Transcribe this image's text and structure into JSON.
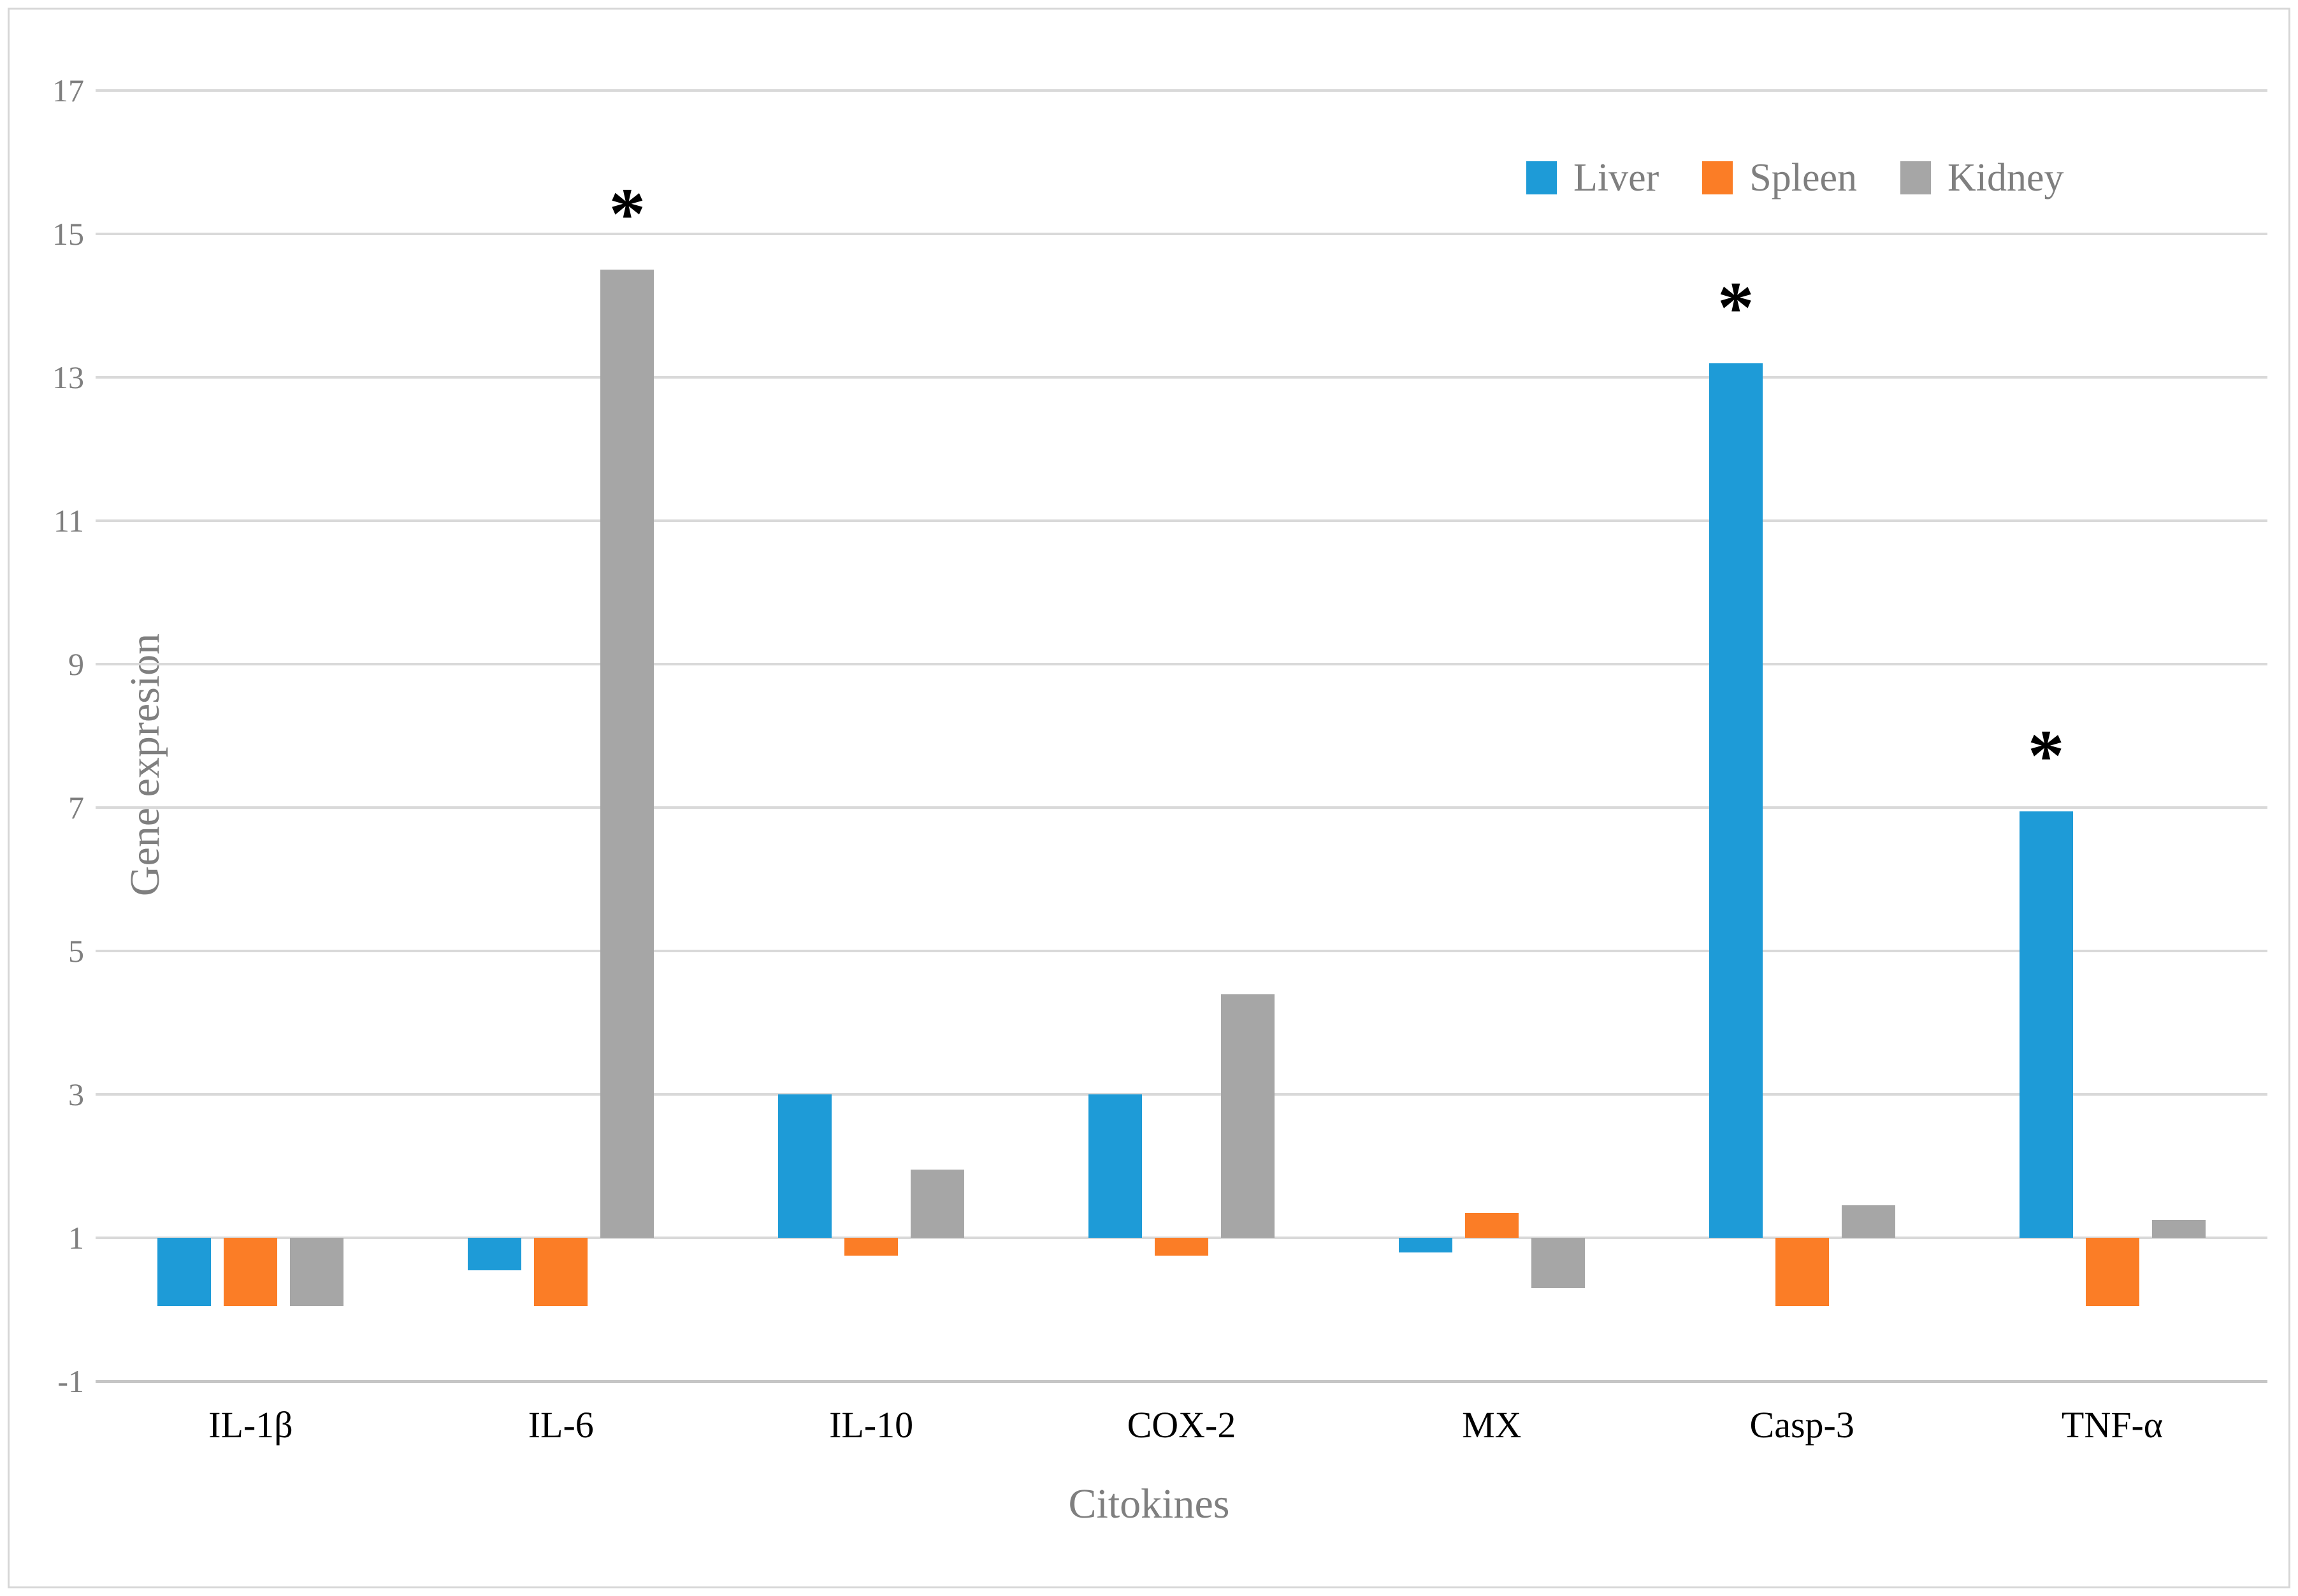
{
  "figure": {
    "background_color": "#ffffff",
    "border_color": "#d6d6d6"
  },
  "palette": {
    "liver_blue": "#1E9BD7",
    "spleen_orange": "#FB7D26",
    "kidney_gray": "#A6A6A6",
    "gridline_color": "#D9D9D9",
    "axis_line_color": "#C6C6C6",
    "axis_text_color": "#7f7f7f",
    "category_text_color": "#000000",
    "annotation_color": "#000000"
  },
  "chart_data": {
    "type": "bar",
    "title": "",
    "xlabel": "Citokines",
    "ylabel": "Gene expresion",
    "categories": [
      "IL-1β",
      "IL-6",
      "IL-10",
      "COX-2",
      "MX",
      "Casp-3",
      "TNF-α"
    ],
    "series": [
      {
        "name": "Liver",
        "color": "#1E9BD7",
        "values": [
          0.05,
          0.55,
          3.0,
          3.0,
          0.8,
          13.2,
          6.95
        ]
      },
      {
        "name": "Spleen",
        "color": "#FB7D26",
        "values": [
          0.05,
          0.05,
          0.75,
          0.75,
          1.35,
          0.05,
          0.05
        ]
      },
      {
        "name": "Kidney",
        "color": "#A6A6A6",
        "values": [
          0.05,
          14.5,
          1.95,
          4.4,
          0.3,
          1.45,
          1.25
        ]
      }
    ],
    "baseline": 1,
    "ylim": [
      -1,
      17
    ],
    "yticks": [
      17,
      15,
      13,
      11,
      9,
      7,
      5,
      3,
      1,
      -1
    ],
    "grid": true,
    "legend_position": "top-right",
    "annotations": [
      {
        "category": "IL-6",
        "series": "Kidney",
        "symbol": "*"
      },
      {
        "category": "Casp-3",
        "series": "Liver",
        "symbol": "*"
      },
      {
        "category": "TNF-α",
        "series": "Liver",
        "symbol": "*"
      }
    ]
  }
}
